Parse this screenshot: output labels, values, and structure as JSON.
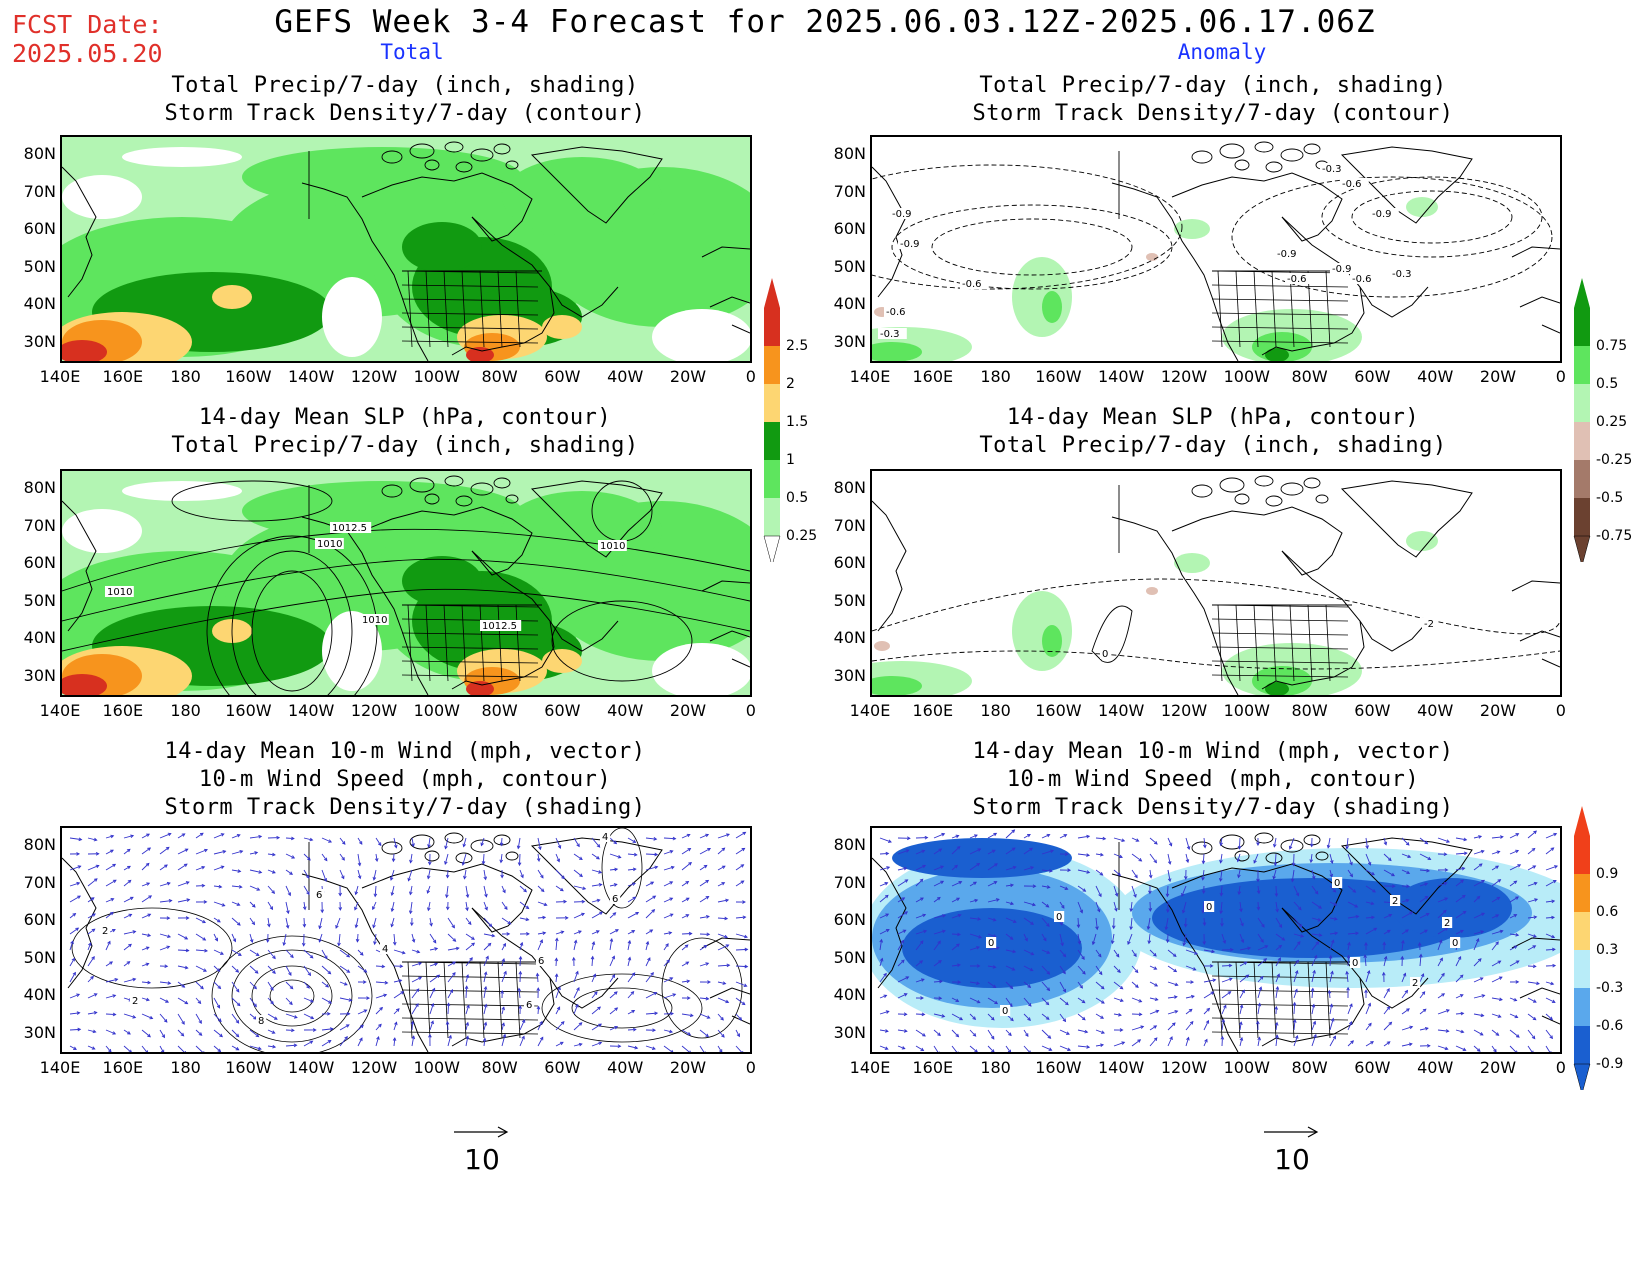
{
  "header": {
    "fcst_label": "FCST Date:",
    "fcst_date": "2025.05.20",
    "title": "GEFS Week 3-4 Forecast for 2025.06.03.12Z-2025.06.17.06Z",
    "left_column": "Total",
    "right_column": "Anomaly"
  },
  "panels": {
    "p1": {
      "line1": "Total Precip/7-day (inch, shading)",
      "line2": "Storm Track Density/7-day (contour)"
    },
    "p2": {
      "line1": "Total Precip/7-day (inch, shading)",
      "line2": "Storm Track Density/7-day (contour)"
    },
    "p3": {
      "line1": "14-day Mean SLP (hPa, contour)",
      "line2": "Total Precip/7-day (inch, shading)"
    },
    "p4": {
      "line1": "14-day Mean SLP (hPa, contour)",
      "line2": "Total Precip/7-day (inch, shading)"
    },
    "p5": {
      "line1": "14-day Mean 10-m Wind (mph, vector)",
      "line2": "10-m Wind Speed (mph, contour)",
      "line3": "Storm Track Density/7-day (shading)"
    },
    "p6": {
      "line1": "14-day Mean 10-m Wind (mph, vector)",
      "line2": "10-m Wind Speed (mph, contour)",
      "line3": "Storm Track Density/7-day (shading)"
    }
  },
  "axes": {
    "lat_labels": [
      "80N",
      "70N",
      "60N",
      "50N",
      "40N",
      "30N"
    ],
    "lon_labels": [
      "140E",
      "160E",
      "180",
      "160W",
      "140W",
      "120W",
      "100W",
      "80W",
      "60W",
      "40W",
      "20W",
      "0"
    ]
  },
  "colorbars": {
    "precip_total": {
      "labels": [
        "2.5",
        "2",
        "1.5",
        "1",
        "0.5",
        "0.25"
      ],
      "colors": [
        "#d7301f",
        "#f7941d",
        "#fdd672",
        "#119a11",
        "#5ee55e",
        "#b3f5b3"
      ]
    },
    "precip_anom": {
      "labels": [
        "0.75",
        "0.5",
        "0.25",
        "-0.25",
        "-0.5",
        "-0.75"
      ],
      "colors": [
        "#119a11",
        "#5ee55e",
        "#b3f5b3",
        "#e0c0b4",
        "#a47a6a",
        "#6b4130"
      ]
    },
    "storm_anom": {
      "labels": [
        "0.9",
        "0.6",
        "0.3",
        "-0.3",
        "-0.6",
        "-0.9"
      ],
      "colors": [
        "#f0401a",
        "#f7941d",
        "#fdd672",
        "#b8ecf8",
        "#5aa8ec",
        "#1a5fd0"
      ]
    }
  },
  "contour_labels": {
    "p2": [
      "-0.3",
      "-0.6",
      "-0.9",
      "-0.9",
      "-0.6",
      "-0.9",
      "-0.6",
      "-0.3",
      "-0.6",
      "-0.9",
      "-0.3",
      "-0.6",
      "-0.9"
    ],
    "p3": [
      "1012.5",
      "1010",
      "1010",
      "1010",
      "1010",
      "1012.5"
    ],
    "p4": [
      "0",
      "-2"
    ],
    "p5": [
      "2",
      "6",
      "8",
      "6",
      "4",
      "6",
      "4",
      "6",
      "2"
    ],
    "p6": [
      "0",
      "0",
      "0",
      "0",
      "2",
      "2",
      "0",
      "0",
      "2",
      "0"
    ]
  },
  "vector_reference": {
    "p5": "10",
    "p6": "10"
  }
}
